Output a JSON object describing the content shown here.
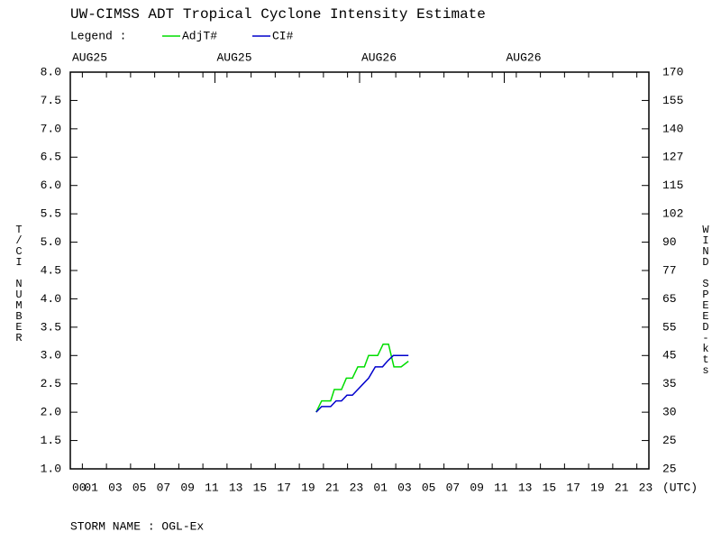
{
  "chart_data": {
    "type": "line",
    "title": "UW-CIMSS ADT Tropical Cyclone Intensity Estimate",
    "legend_label": "Legend :",
    "ylabel": "T/CI NUMBER",
    "y2label": "WIND SPEED-kts",
    "xlabel": "(UTC)",
    "footer": "STORM NAME : OGL-Ex",
    "xlim": [
      0,
      48
    ],
    "ylim": [
      1.0,
      8.0
    ],
    "yticks": [
      {
        "value": 1.0,
        "label": "1.0"
      },
      1.5,
      {
        "value": 2.0,
        "label": "2.0"
      },
      2.5,
      {
        "value": 3.0,
        "label": "3.0"
      },
      3.5,
      {
        "value": 4.0,
        "label": "4.0"
      },
      4.5,
      {
        "value": 5.0,
        "label": "5.0"
      },
      5.5,
      {
        "value": 6.0,
        "label": "6.0"
      },
      6.5,
      {
        "value": 7.0,
        "label": "7.0"
      },
      7.5,
      {
        "value": 8.0,
        "label": "8.0"
      }
    ],
    "wind_speed_ticks": [
      25,
      25,
      30,
      35,
      45,
      55,
      65,
      77,
      90,
      102,
      115,
      127,
      140,
      155,
      170
    ],
    "xticks": [
      {
        "value": 0,
        "label": "00"
      },
      {
        "value": 1,
        "label": "01"
      },
      {
        "value": 3,
        "label": "03"
      },
      {
        "value": 5,
        "label": "05"
      },
      {
        "value": 7,
        "label": "07"
      },
      {
        "value": 9,
        "label": "09"
      },
      11,
      13,
      15,
      17,
      19,
      21,
      23,
      {
        "value": 25,
        "label": "01"
      },
      {
        "value": 27,
        "label": "03"
      },
      {
        "value": 29,
        "label": "05"
      },
      {
        "value": 31,
        "label": "07"
      },
      {
        "value": 33,
        "label": "09"
      },
      {
        "value": 35,
        "label": "11"
      },
      {
        "value": 37,
        "label": "13"
      },
      {
        "value": 39,
        "label": "15"
      },
      {
        "value": 41,
        "label": "17"
      },
      {
        "value": 43,
        "label": "19"
      },
      {
        "value": 45,
        "label": "21"
      },
      {
        "value": 47,
        "label": "23"
      }
    ],
    "date_ticks": [
      {
        "value": 0,
        "label": "AUG25"
      },
      {
        "value": 12,
        "label": "AUG25"
      },
      {
        "value": 24,
        "label": "AUG26"
      },
      {
        "value": 36,
        "label": "AUG26"
      }
    ],
    "series": [
      {
        "name": "AdjT#",
        "color": "#00dd00",
        "x": [
          20.4,
          20.85,
          21.6,
          21.9,
          22.5,
          22.9,
          23.4,
          23.85,
          24.4,
          24.75,
          25.5,
          25.95,
          26.4,
          26.85,
          27.45,
          28.05
        ],
        "values": [
          2.0,
          2.2,
          2.2,
          2.4,
          2.4,
          2.6,
          2.6,
          2.8,
          2.8,
          3.0,
          3.0,
          3.2,
          3.2,
          2.8,
          2.8,
          2.9
        ]
      },
      {
        "name": "CI#",
        "color": "#0000cc",
        "x": [
          20.4,
          20.85,
          21.6,
          22.05,
          22.5,
          22.95,
          23.4,
          23.85,
          24.3,
          24.75,
          25.3,
          25.9,
          26.3,
          26.8,
          28.05
        ],
        "values": [
          2.0,
          2.1,
          2.1,
          2.2,
          2.2,
          2.3,
          2.3,
          2.4,
          2.5,
          2.6,
          2.8,
          2.8,
          2.9,
          3.0,
          3.0
        ]
      }
    ]
  }
}
